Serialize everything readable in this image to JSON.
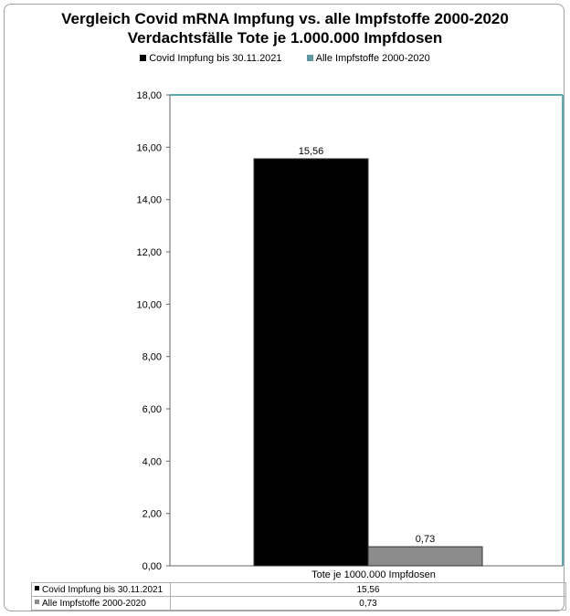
{
  "chart_data": {
    "type": "bar",
    "title": "Vergleich Covid mRNA Impfung vs. alle Impfstoffe 2000-2020",
    "subtitle": "Verdachtsfälle Tote je 1.000.000 Impfdosen",
    "categories": [
      "Tote je 1000.000 Impfdosen"
    ],
    "series": [
      {
        "name": "Covid Impfung bis 30.11.2021",
        "values": [
          15.56
        ],
        "value_labels": [
          "15,56"
        ],
        "color": "#000000"
      },
      {
        "name": "Alle Impfstoffe 2000-2020",
        "values": [
          0.73
        ],
        "value_labels": [
          "0,73"
        ],
        "color": "#8c8c8c"
      }
    ],
    "ylim": [
      0,
      18
    ],
    "yticks": [
      0,
      2,
      4,
      6,
      8,
      10,
      12,
      14,
      16,
      18
    ],
    "ytick_labels": [
      "0,00",
      "2,00",
      "4,00",
      "6,00",
      "8,00",
      "10,00",
      "12,00",
      "14,00",
      "16,00",
      "18,00"
    ],
    "legend_position": "top",
    "grid": false,
    "data_table": true
  },
  "colors": {
    "axis": "#5fa8b0",
    "frame": "#9aa0a6",
    "legend_swatch_2": "#5f96a0"
  }
}
